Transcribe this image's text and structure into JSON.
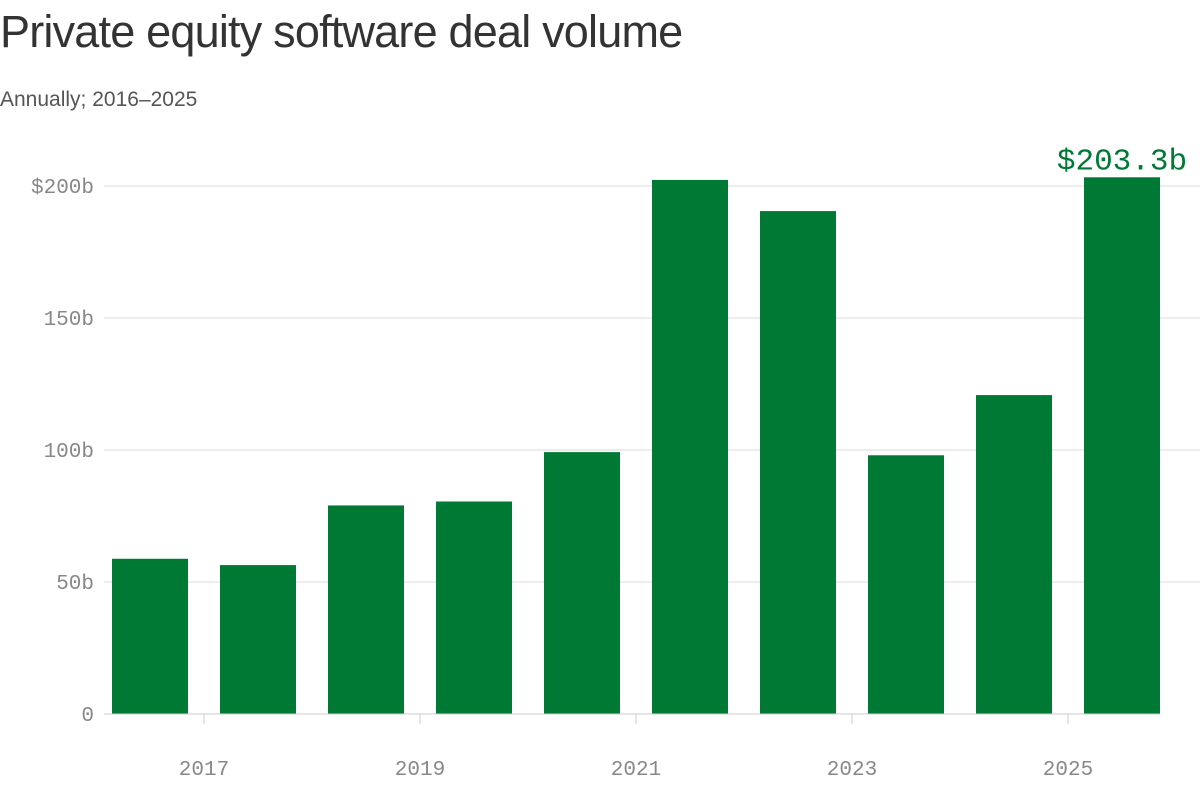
{
  "chart_data": {
    "type": "bar",
    "title": "Private equity software deal volume",
    "subtitle": "Annually; 2016–2025",
    "categories": [
      "2016",
      "2017",
      "2018",
      "2019",
      "2020",
      "2021",
      "2022",
      "2023",
      "2024",
      "2025"
    ],
    "values": [
      58.8,
      56.4,
      79.0,
      80.5,
      99.2,
      202.3,
      190.5,
      98.0,
      120.8,
      203.3
    ],
    "units": "billions of dollars",
    "ylim": [
      0,
      200
    ],
    "yticks": [
      0,
      50,
      100,
      150,
      200
    ],
    "ytick_labels": [
      "0",
      "50b",
      "100b",
      "150b",
      "$200b"
    ],
    "xticks": [
      "2017",
      "2019",
      "2021",
      "2023",
      "2025"
    ],
    "highlight": {
      "category": "2025",
      "label": "$203.3b"
    },
    "xlabel": "",
    "ylabel": "",
    "grid": true,
    "colors": {
      "bar": "#007934",
      "label": "#007934",
      "grid": "#d9d9d9",
      "axis": "#cccccc",
      "tick_text": "#888888"
    }
  }
}
